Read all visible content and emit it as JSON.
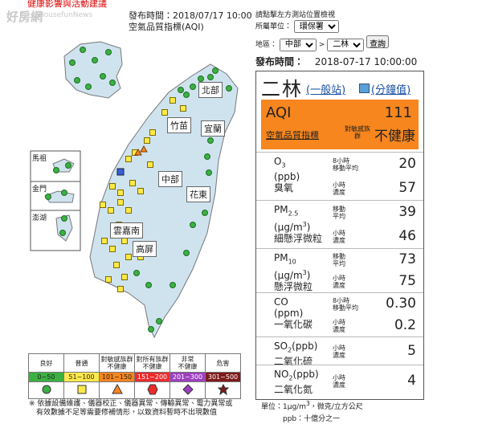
{
  "header": {
    "alert": "健康影響與活動建議",
    "watermark": "好房網",
    "watermark_en": "HousefunNews"
  },
  "map": {
    "publish_time": "發布時間：2018/07/17 10:00",
    "title": "空氣品質指標(AQI)",
    "regions": [
      "北部",
      "竹苗",
      "宜蘭",
      "中部",
      "花東",
      "雲嘉南",
      "高屏"
    ],
    "islands": [
      "馬祖",
      "金門",
      "澎湖"
    ]
  },
  "legend": {
    "columns": [
      {
        "lines": [
          "良好"
        ],
        "range": "0~50"
      },
      {
        "lines": [
          "普通"
        ],
        "range": "51~100"
      },
      {
        "lines": [
          "對敏感族群",
          "不健康"
        ],
        "range": "101~150"
      },
      {
        "lines": [
          "對所有族群",
          "不健康"
        ],
        "range": "151~200"
      },
      {
        "lines": [
          "非常",
          "不健康"
        ],
        "range": "201~300"
      },
      {
        "lines": [
          "危害"
        ],
        "range": "301~500"
      }
    ],
    "note": [
      "※ 依據設備維護、儀器校正、儀器異常、傳輸異常、電力異常或",
      "有效數據不足等需要修補情形，以致資料暫時不出現數值"
    ]
  },
  "query": {
    "hint": "請點擊左方測站位置檢視",
    "unit_label": "所屬單位：",
    "unit_value": "環保署",
    "area_label": "地區：",
    "area_value": "中部",
    "sep": ">",
    "station_value": "二林",
    "button": "查詢"
  },
  "station": {
    "publish_label": "發布時間：",
    "publish_time": "2018-07-17 10:00:00",
    "name": "二林",
    "type": "(一般站)",
    "minute": "(分鐘值)",
    "aqi_label": "AQI",
    "aqi": "111",
    "aqi_name": "空氣品質指標",
    "group": [
      "對敏感族",
      "群"
    ],
    "status": "不健康",
    "pollutants": [
      {
        "symbol": "O",
        "sub": "3",
        "unit": "(ppb)",
        "name": "臭氧",
        "readings": [
          {
            "l1": "8小時",
            "l2": "移動平均",
            "value": "20"
          },
          {
            "l1": "小時",
            "l2": "濃度",
            "value": "57"
          }
        ]
      },
      {
        "symbol": "PM",
        "sub": "2.5",
        "unit": "(μg/m",
        "unit_sup": "3",
        "unit_end": ")",
        "name": "細懸浮微粒",
        "readings": [
          {
            "l1": "移動",
            "l2": "平均",
            "value": "39"
          },
          {
            "l1": "小時",
            "l2": "濃度",
            "value": "46"
          }
        ]
      },
      {
        "symbol": "PM",
        "sub": "10",
        "unit": "(μg/m",
        "unit_sup": "3",
        "unit_end": ")",
        "name": "懸浮微粒",
        "readings": [
          {
            "l1": "移動",
            "l2": "平均",
            "value": "73"
          },
          {
            "l1": "小時",
            "l2": "濃度",
            "value": "75"
          }
        ]
      },
      {
        "symbol": "CO",
        "unit": "(ppm)",
        "name": "一氧化碳",
        "readings": [
          {
            "l1": "8小時",
            "l2": "移動平均",
            "value": "0.30"
          },
          {
            "l1": "小時",
            "l2": "濃度",
            "value": "0.2"
          }
        ]
      },
      {
        "symbol": "SO",
        "sub": "2",
        "unit": "(ppb)",
        "name": "二氧化硫",
        "readings": [
          {
            "l1": "小時",
            "l2": "濃度",
            "value": "5"
          }
        ]
      },
      {
        "symbol": "NO",
        "sub": "2",
        "unit": "(ppb)",
        "name": "二氧化氮",
        "readings": [
          {
            "l1": "小時",
            "l2": "濃度",
            "value": "4"
          }
        ]
      }
    ]
  },
  "footer": {
    "unit_note": "單位：1μg/m",
    "unit_sup": "3",
    "unit_note_end": "，微克/立方公尺",
    "ppb_note": "ppb：十億分之一"
  }
}
